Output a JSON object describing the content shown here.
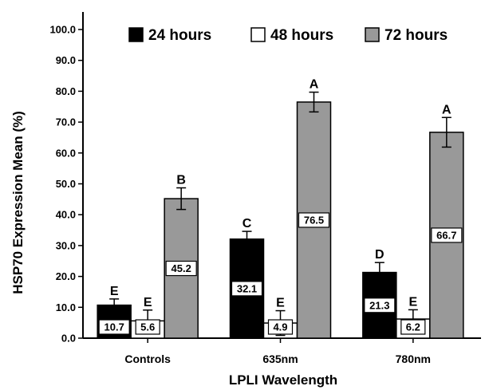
{
  "chart_data": {
    "type": "bar",
    "xlabel": "LPLI Wavelength",
    "ylabel": "HSP70 Expression Mean (%)",
    "ylim": [
      0,
      100
    ],
    "yticks": [
      "0.0",
      "10.0",
      "20.0",
      "30.0",
      "40.0",
      "50.0",
      "60.0",
      "70.0",
      "80.0",
      "90.0",
      "100.0"
    ],
    "categories": [
      "Controls",
      "635nm",
      "780nm"
    ],
    "legend_position": "top",
    "grid": false,
    "series": [
      {
        "name": "24 hours",
        "color": "#000000",
        "values": [
          10.7,
          32.1,
          21.3
        ],
        "labels": [
          "10.7",
          "32.1",
          "21.3"
        ],
        "errors": [
          2.0,
          2.5,
          3.2
        ],
        "letters": [
          "E",
          "C",
          "D"
        ]
      },
      {
        "name": "48 hours",
        "color": "#ffffff",
        "values": [
          5.6,
          4.9,
          6.2
        ],
        "labels": [
          "5.6",
          "4.9",
          "6.2"
        ],
        "errors": [
          3.5,
          4.0,
          3.0
        ],
        "letters": [
          "E",
          "E",
          "E"
        ]
      },
      {
        "name": "72 hours",
        "color": "#999999",
        "values": [
          45.2,
          76.5,
          66.7
        ],
        "labels": [
          "45.2",
          "76.5",
          "66.7"
        ],
        "errors": [
          3.5,
          3.2,
          4.8
        ],
        "letters": [
          "B",
          "A",
          "A"
        ]
      }
    ]
  }
}
